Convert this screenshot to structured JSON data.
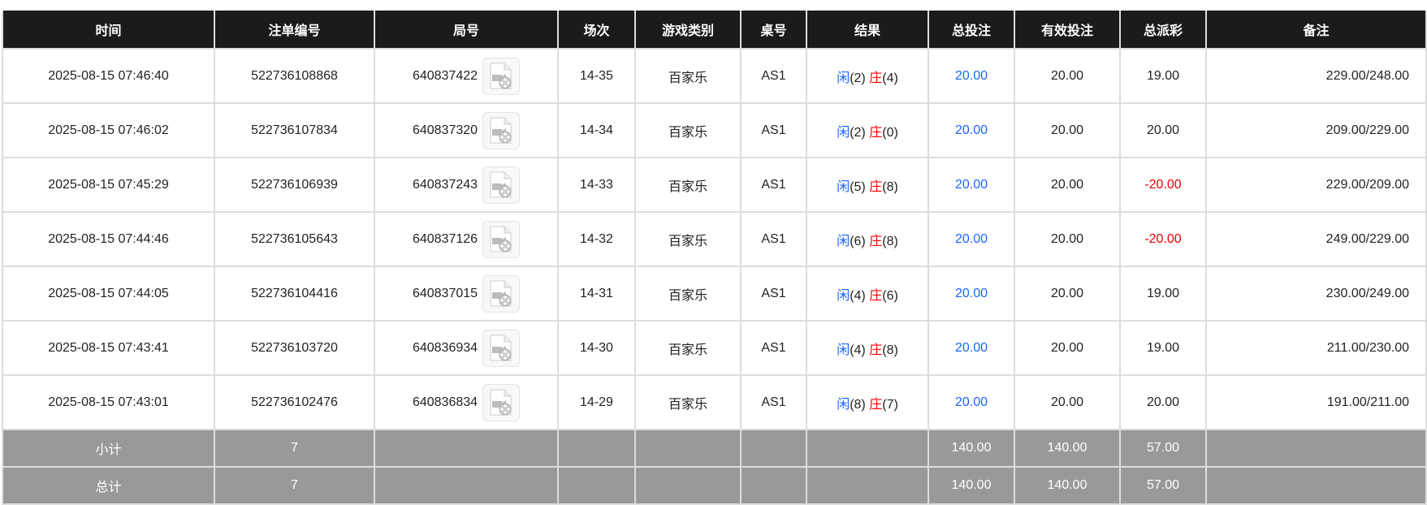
{
  "headers": [
    "时间",
    "注单编号",
    "局号",
    "场次",
    "游戏类别",
    "桌号",
    "结果",
    "总投注",
    "有效投注",
    "总派彩",
    "备注"
  ],
  "colors": {
    "header_bg": "#1b1b1b",
    "player": "#1a66ff",
    "banker": "#ff0000",
    "negative": "#ee0000",
    "summary_bg": "#999999"
  },
  "rows": [
    {
      "time": "2025-08-15 07:46:40",
      "bet_id": "522736108868",
      "round": "640837422",
      "session": "14-35",
      "game": "百家乐",
      "table": "AS1",
      "player_label": "闲",
      "player_score": "(2)",
      "banker_label": "庄",
      "banker_score": "(4)",
      "total_bet": "20.00",
      "valid_bet": "20.00",
      "payout": "19.00",
      "remark": "229.00/248.00"
    },
    {
      "time": "2025-08-15 07:46:02",
      "bet_id": "522736107834",
      "round": "640837320",
      "session": "14-34",
      "game": "百家乐",
      "table": "AS1",
      "player_label": "闲",
      "player_score": "(2)",
      "banker_label": "庄",
      "banker_score": "(0)",
      "total_bet": "20.00",
      "valid_bet": "20.00",
      "payout": "20.00",
      "remark": "209.00/229.00"
    },
    {
      "time": "2025-08-15 07:45:29",
      "bet_id": "522736106939",
      "round": "640837243",
      "session": "14-33",
      "game": "百家乐",
      "table": "AS1",
      "player_label": "闲",
      "player_score": "(5)",
      "banker_label": "庄",
      "banker_score": "(8)",
      "total_bet": "20.00",
      "valid_bet": "20.00",
      "payout": "-20.00",
      "remark": "229.00/209.00"
    },
    {
      "time": "2025-08-15 07:44:46",
      "bet_id": "522736105643",
      "round": "640837126",
      "session": "14-32",
      "game": "百家乐",
      "table": "AS1",
      "player_label": "闲",
      "player_score": "(6)",
      "banker_label": "庄",
      "banker_score": "(8)",
      "total_bet": "20.00",
      "valid_bet": "20.00",
      "payout": "-20.00",
      "remark": "249.00/229.00"
    },
    {
      "time": "2025-08-15 07:44:05",
      "bet_id": "522736104416",
      "round": "640837015",
      "session": "14-31",
      "game": "百家乐",
      "table": "AS1",
      "player_label": "闲",
      "player_score": "(4)",
      "banker_label": "庄",
      "banker_score": "(6)",
      "total_bet": "20.00",
      "valid_bet": "20.00",
      "payout": "19.00",
      "remark": "230.00/249.00"
    },
    {
      "time": "2025-08-15 07:43:41",
      "bet_id": "522736103720",
      "round": "640836934",
      "session": "14-30",
      "game": "百家乐",
      "table": "AS1",
      "player_label": "闲",
      "player_score": "(4)",
      "banker_label": "庄",
      "banker_score": "(8)",
      "total_bet": "20.00",
      "valid_bet": "20.00",
      "payout": "19.00",
      "remark": "211.00/230.00"
    },
    {
      "time": "2025-08-15 07:43:01",
      "bet_id": "522736102476",
      "round": "640836834",
      "session": "14-29",
      "game": "百家乐",
      "table": "AS1",
      "player_label": "闲",
      "player_score": "(8)",
      "banker_label": "庄",
      "banker_score": "(7)",
      "total_bet": "20.00",
      "valid_bet": "20.00",
      "payout": "20.00",
      "remark": "191.00/211.00"
    }
  ],
  "summary": [
    {
      "label": "小计",
      "count": "7",
      "total_bet": "140.00",
      "valid_bet": "140.00",
      "payout": "57.00"
    },
    {
      "label": "总计",
      "count": "7",
      "total_bet": "140.00",
      "valid_bet": "140.00",
      "payout": "57.00"
    }
  ],
  "icons": {
    "replay": "video-replay-icon"
  }
}
